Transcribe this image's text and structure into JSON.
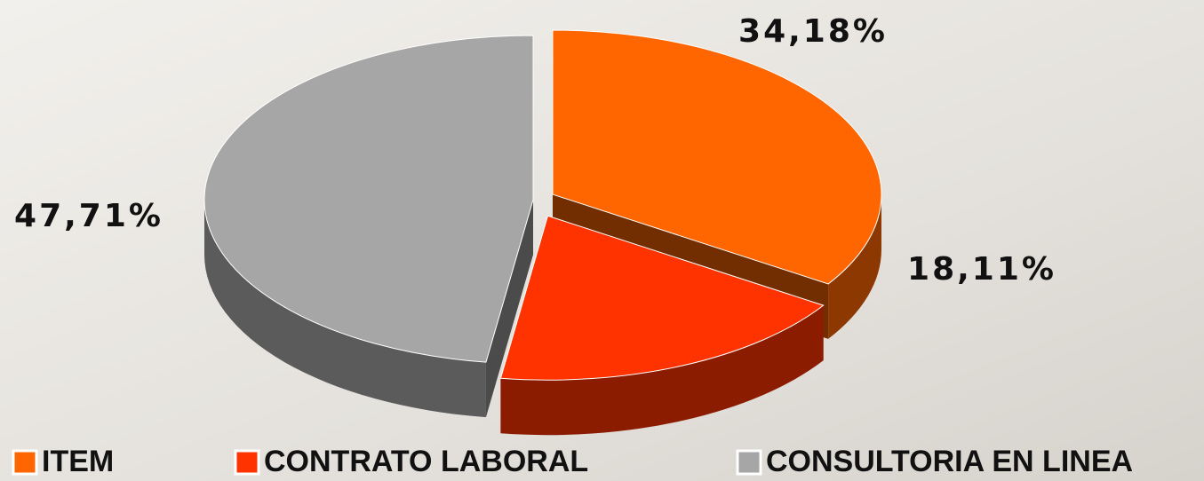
{
  "chart_data": {
    "type": "pie",
    "categories": [
      "ITEM",
      "CONTRATO LABORAL",
      "CONSULTORIA EN LINEA"
    ],
    "values": [
      34.18,
      18.11,
      47.71
    ],
    "value_labels": [
      "34,18%",
      "18,11%",
      "47,71%"
    ],
    "colors": [
      "#ff6600",
      "#ff3300",
      "#a6a6a6"
    ]
  }
}
